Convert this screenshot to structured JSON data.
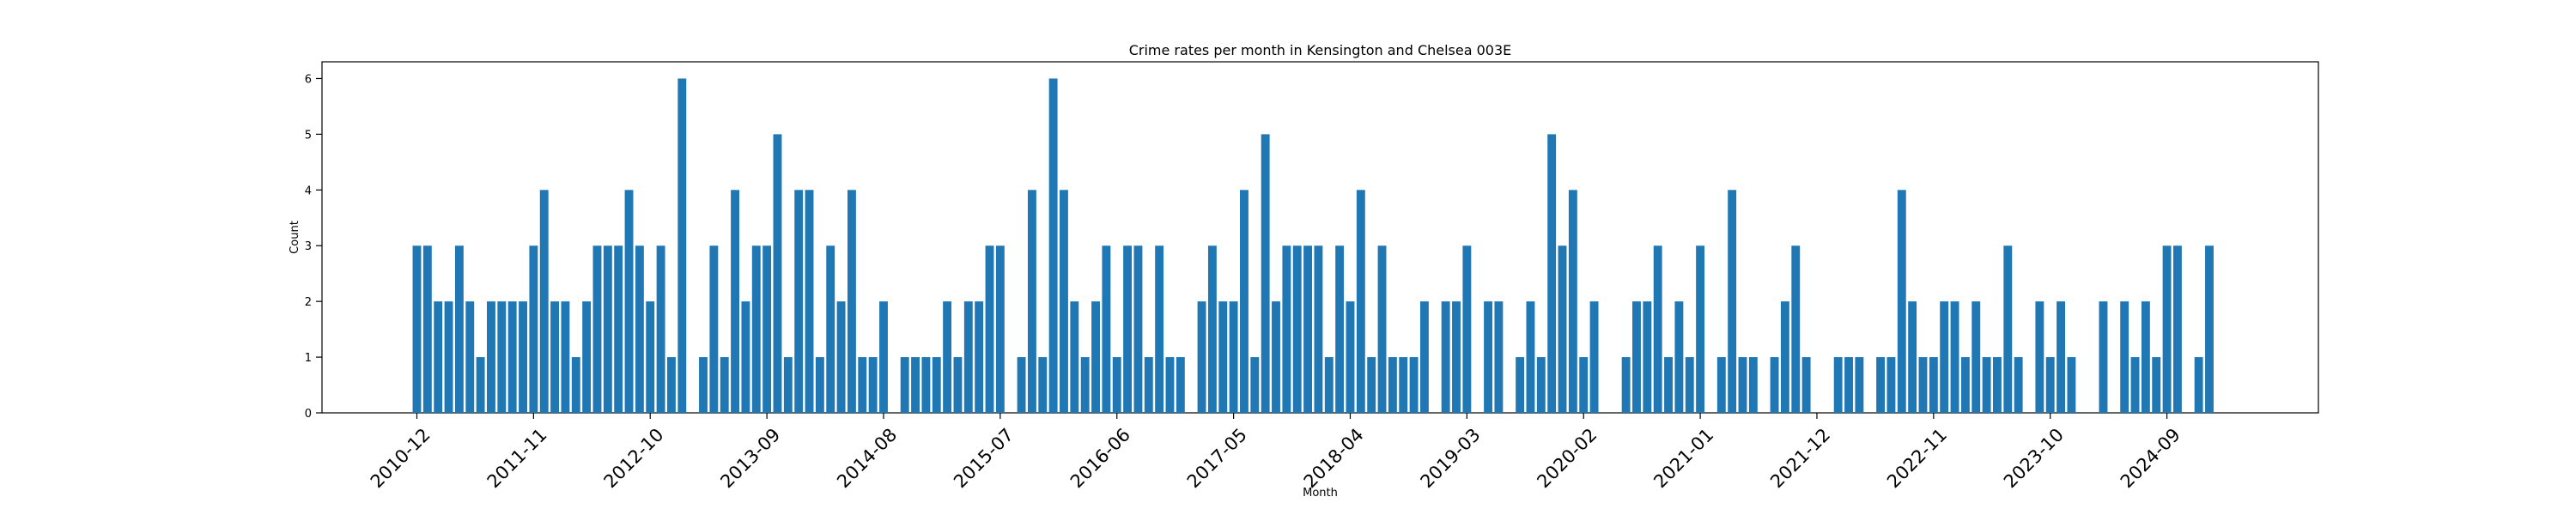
{
  "chart_data": {
    "type": "bar",
    "title": "Crime rates per month in Kensington and Chelsea 003E",
    "xlabel": "Month",
    "ylabel": "Count",
    "ylim": [
      0,
      6.3
    ],
    "yticks": [
      0,
      1,
      2,
      3,
      4,
      5,
      6
    ],
    "xtick_labels": [
      "2010-12",
      "2011-11",
      "2012-10",
      "2013-09",
      "2014-08",
      "2015-07",
      "2016-06",
      "2017-05",
      "2018-04",
      "2019-03",
      "2020-02",
      "2021-01",
      "2021-12",
      "2022-11",
      "2023-10",
      "2024-09"
    ],
    "bar_color": "#1f77b4",
    "start_month": "2010-12",
    "values": [
      3,
      3,
      2,
      2,
      3,
      2,
      1,
      2,
      2,
      2,
      2,
      3,
      4,
      2,
      2,
      1,
      2,
      3,
      3,
      3,
      4,
      3,
      2,
      3,
      1,
      6,
      0,
      1,
      3,
      1,
      4,
      2,
      3,
      3,
      5,
      1,
      4,
      4,
      1,
      3,
      2,
      4,
      1,
      1,
      2,
      0,
      1,
      1,
      1,
      1,
      2,
      1,
      2,
      2,
      3,
      3,
      0,
      1,
      4,
      1,
      6,
      4,
      2,
      1,
      2,
      3,
      1,
      3,
      3,
      1,
      3,
      1,
      1,
      0,
      2,
      3,
      2,
      2,
      4,
      1,
      5,
      2,
      3,
      3,
      3,
      3,
      1,
      3,
      2,
      4,
      1,
      3,
      1,
      1,
      1,
      2,
      0,
      2,
      2,
      3,
      0,
      2,
      2,
      0,
      1,
      2,
      1,
      5,
      3,
      4,
      1,
      2,
      0,
      0,
      1,
      2,
      2,
      3,
      1,
      2,
      1,
      3,
      0,
      1,
      4,
      1,
      1,
      0,
      1,
      2,
      3,
      1,
      0,
      0,
      1,
      1,
      1,
      0,
      1,
      1,
      4,
      2,
      1,
      1,
      2,
      2,
      1,
      2,
      1,
      1,
      3,
      1,
      0,
      2,
      1,
      2,
      1,
      0,
      0,
      2,
      0,
      2,
      1,
      2,
      1,
      3,
      3,
      0,
      1,
      3
    ],
    "grid": false,
    "legend": "none"
  }
}
